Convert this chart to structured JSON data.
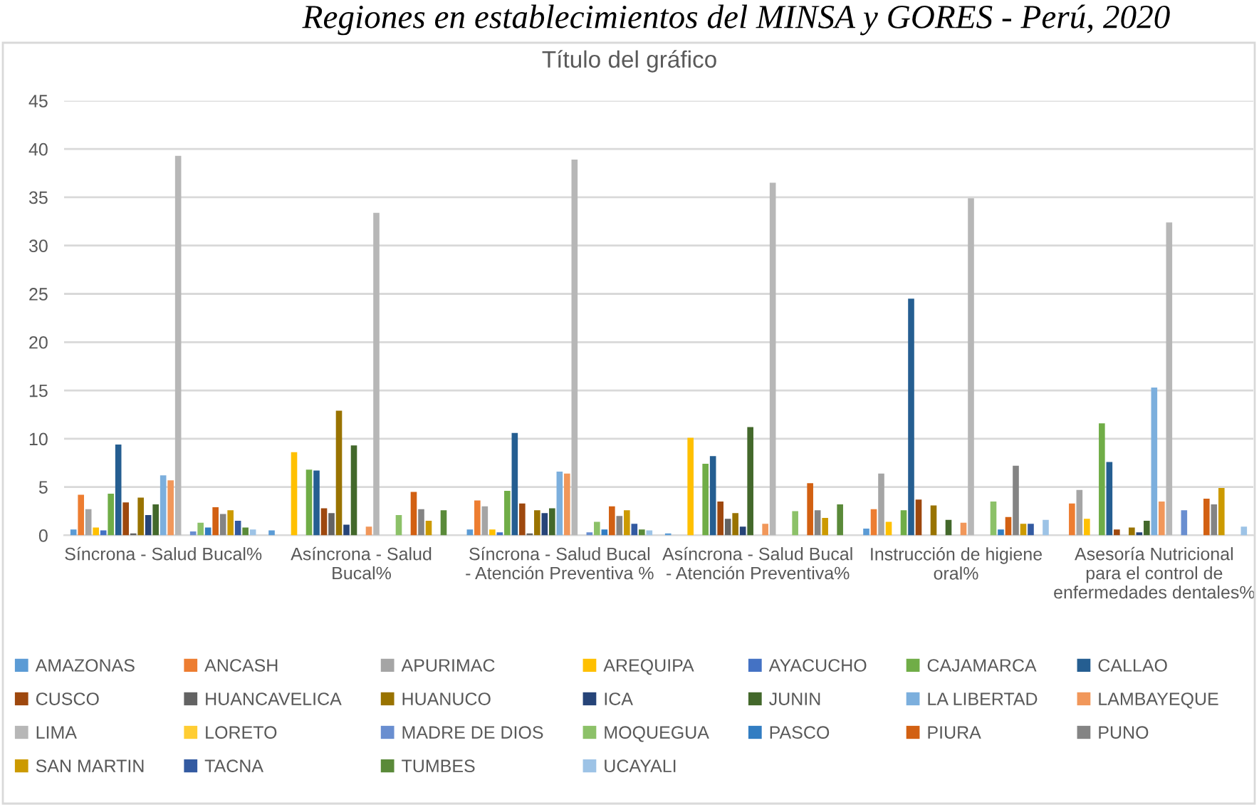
{
  "chart_data": {
    "type": "bar",
    "title": "Título del gráfico",
    "annotations": [
      "Regiones en establecimientos del MINSA y GORES - Perú, 2020"
    ],
    "categories": [
      "Síncrona - Salud Bucal%",
      "Asíncrona - Salud Bucal%",
      "Síncrona - Salud Bucal - Atención Preventiva %",
      "Asíncrona - Salud Bucal - Atención Preventiva%",
      "Instrucción de higiene oral%",
      "Asesoría Nutricional para el control de enfermedades dentales%"
    ],
    "ylim": [
      0,
      45
    ],
    "yticks": [
      0,
      5,
      10,
      15,
      20,
      25,
      30,
      35,
      40,
      45
    ],
    "grid": "y",
    "legend": "bottom",
    "series": [
      {
        "name": "AMAZONAS",
        "color": "#5b9bd5",
        "values": [
          0.6,
          0.5,
          0.6,
          0.2,
          0.7,
          null
        ]
      },
      {
        "name": "ANCASH",
        "color": "#ed7d31",
        "values": [
          4.2,
          null,
          3.6,
          null,
          2.7,
          3.3
        ]
      },
      {
        "name": "APURIMAC",
        "color": "#a5a5a5",
        "values": [
          2.7,
          null,
          3.0,
          null,
          6.4,
          4.7
        ]
      },
      {
        "name": "AREQUIPA",
        "color": "#ffc000",
        "values": [
          0.8,
          8.6,
          0.6,
          10.1,
          1.4,
          1.7
        ]
      },
      {
        "name": "AYACUCHO",
        "color": "#4472c4",
        "values": [
          0.5,
          null,
          0.3,
          null,
          null,
          null
        ]
      },
      {
        "name": "CAJAMARCA",
        "color": "#70ad47",
        "values": [
          4.3,
          6.8,
          4.6,
          7.4,
          2.6,
          11.6
        ]
      },
      {
        "name": "CALLAO",
        "color": "#255e91",
        "values": [
          9.4,
          6.7,
          10.6,
          8.2,
          24.5,
          7.6
        ]
      },
      {
        "name": "CUSCO",
        "color": "#9e480e",
        "values": [
          3.4,
          2.8,
          3.3,
          3.5,
          3.7,
          0.6
        ]
      },
      {
        "name": "HUANCAVELICA",
        "color": "#636363",
        "values": [
          0.2,
          2.3,
          0.2,
          1.7,
          null,
          null
        ]
      },
      {
        "name": "HUANUCO",
        "color": "#997300",
        "values": [
          3.9,
          12.9,
          2.6,
          2.3,
          3.1,
          0.8
        ]
      },
      {
        "name": "ICA",
        "color": "#264478",
        "values": [
          2.1,
          1.1,
          2.3,
          0.9,
          null,
          0.3
        ]
      },
      {
        "name": "JUNIN",
        "color": "#43682b",
        "values": [
          3.2,
          9.3,
          2.8,
          11.2,
          1.6,
          1.5
        ]
      },
      {
        "name": "LA LIBERTAD",
        "color": "#7cafdd",
        "values": [
          6.2,
          null,
          6.6,
          null,
          null,
          15.3
        ]
      },
      {
        "name": "LAMBAYEQUE",
        "color": "#f1975a",
        "values": [
          5.7,
          0.9,
          6.4,
          1.2,
          1.3,
          3.5
        ]
      },
      {
        "name": "LIMA",
        "color": "#b7b7b7",
        "values": [
          39.3,
          33.4,
          38.9,
          36.5,
          34.9,
          32.4
        ]
      },
      {
        "name": "LORETO",
        "color": "#ffcd33",
        "values": [
          null,
          null,
          null,
          null,
          null,
          null
        ]
      },
      {
        "name": "MADRE DE DIOS",
        "color": "#698ed0",
        "values": [
          0.4,
          null,
          0.3,
          null,
          null,
          2.6
        ]
      },
      {
        "name": "MOQUEGUA",
        "color": "#8cc168",
        "values": [
          1.3,
          2.1,
          1.4,
          2.5,
          3.5,
          null
        ]
      },
      {
        "name": "PASCO",
        "color": "#327dc2",
        "values": [
          0.8,
          null,
          0.6,
          null,
          0.6,
          null
        ]
      },
      {
        "name": "PIURA",
        "color": "#d26012",
        "values": [
          2.9,
          4.5,
          3.0,
          5.4,
          1.9,
          3.8
        ]
      },
      {
        "name": "PUNO",
        "color": "#848484",
        "values": [
          2.2,
          2.7,
          2.0,
          2.6,
          7.2,
          3.2
        ]
      },
      {
        "name": "SAN MARTIN",
        "color": "#cc9a00",
        "values": [
          2.6,
          1.5,
          2.6,
          1.8,
          1.2,
          4.9
        ]
      },
      {
        "name": "TACNA",
        "color": "#335aa1",
        "values": [
          1.5,
          null,
          1.2,
          null,
          1.2,
          null
        ]
      },
      {
        "name": "TUMBES",
        "color": "#5a8a39",
        "values": [
          0.8,
          2.6,
          0.6,
          3.2,
          null,
          null
        ]
      },
      {
        "name": "UCAYALI",
        "color": "#9dc3e6",
        "values": [
          0.6,
          null,
          0.5,
          null,
          1.6,
          0.9
        ]
      }
    ]
  }
}
